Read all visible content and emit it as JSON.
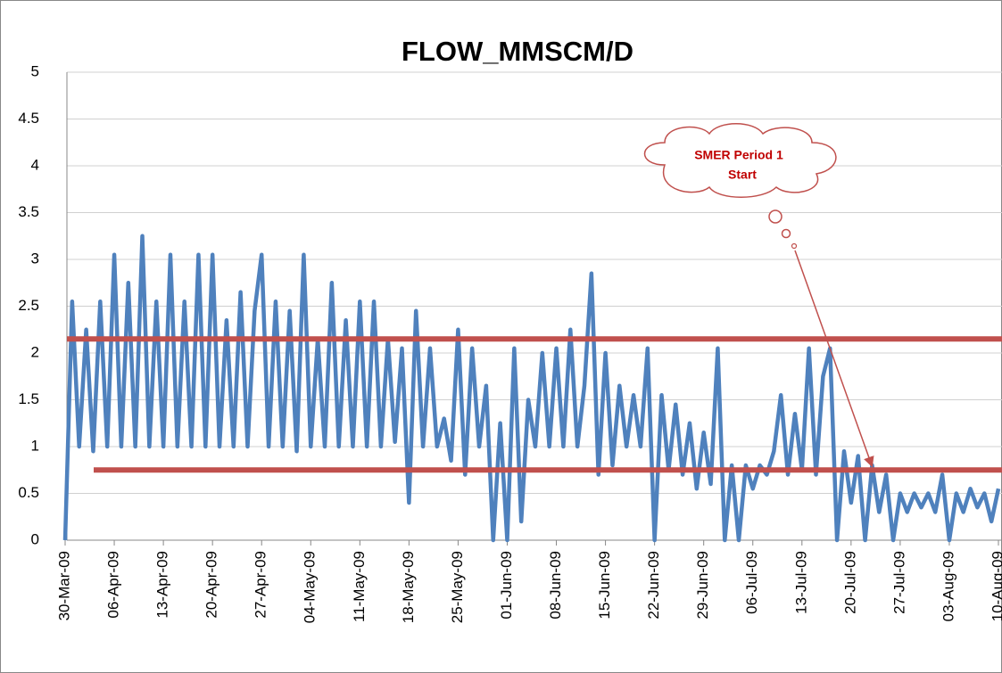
{
  "chart_data": {
    "type": "line",
    "title": "FLOW_MMSCM/D",
    "x": [
      "30-Mar-09",
      "31-Mar-09",
      "01-Apr-09",
      "02-Apr-09",
      "03-Apr-09",
      "04-Apr-09",
      "05-Apr-09",
      "06-Apr-09",
      "07-Apr-09",
      "08-Apr-09",
      "09-Apr-09",
      "10-Apr-09",
      "11-Apr-09",
      "12-Apr-09",
      "13-Apr-09",
      "14-Apr-09",
      "15-Apr-09",
      "16-Apr-09",
      "17-Apr-09",
      "18-Apr-09",
      "19-Apr-09",
      "20-Apr-09",
      "21-Apr-09",
      "22-Apr-09",
      "23-Apr-09",
      "24-Apr-09",
      "25-Apr-09",
      "26-Apr-09",
      "27-Apr-09",
      "28-Apr-09",
      "29-Apr-09",
      "30-Apr-09",
      "01-May-09",
      "02-May-09",
      "03-May-09",
      "04-May-09",
      "05-May-09",
      "06-May-09",
      "07-May-09",
      "08-May-09",
      "09-May-09",
      "10-May-09",
      "11-May-09",
      "12-May-09",
      "13-May-09",
      "14-May-09",
      "15-May-09",
      "16-May-09",
      "17-May-09",
      "18-May-09",
      "19-May-09",
      "20-May-09",
      "21-May-09",
      "22-May-09",
      "23-May-09",
      "24-May-09",
      "25-May-09",
      "26-May-09",
      "27-May-09",
      "28-May-09",
      "29-May-09",
      "30-May-09",
      "31-May-09",
      "01-Jun-09",
      "02-Jun-09",
      "03-Jun-09",
      "04-Jun-09",
      "05-Jun-09",
      "06-Jun-09",
      "07-Jun-09",
      "08-Jun-09",
      "09-Jun-09",
      "10-Jun-09",
      "11-Jun-09",
      "12-Jun-09",
      "13-Jun-09",
      "14-Jun-09",
      "15-Jun-09",
      "16-Jun-09",
      "17-Jun-09",
      "18-Jun-09",
      "19-Jun-09",
      "20-Jun-09",
      "21-Jun-09",
      "22-Jun-09",
      "23-Jun-09",
      "24-Jun-09",
      "25-Jun-09",
      "26-Jun-09",
      "27-Jun-09",
      "28-Jun-09",
      "29-Jun-09",
      "30-Jun-09",
      "01-Jul-09",
      "02-Jul-09",
      "03-Jul-09",
      "04-Jul-09",
      "05-Jul-09",
      "06-Jul-09",
      "07-Jul-09",
      "08-Jul-09",
      "09-Jul-09",
      "10-Jul-09",
      "11-Jul-09",
      "12-Jul-09",
      "13-Jul-09",
      "14-Jul-09",
      "15-Jul-09",
      "16-Jul-09",
      "17-Jul-09",
      "18-Jul-09",
      "19-Jul-09",
      "20-Jul-09",
      "21-Jul-09",
      "22-Jul-09",
      "23-Jul-09",
      "24-Jul-09",
      "25-Jul-09",
      "26-Jul-09",
      "27-Jul-09",
      "28-Jul-09",
      "29-Jul-09",
      "30-Jul-09",
      "31-Jul-09",
      "01-Aug-09",
      "02-Aug-09",
      "03-Aug-09",
      "04-Aug-09",
      "05-Aug-09",
      "06-Aug-09",
      "07-Aug-09",
      "08-Aug-09",
      "09-Aug-09",
      "10-Aug-09"
    ],
    "series": [
      {
        "color": "#4f81bd",
        "values": [
          0,
          2.55,
          1.0,
          2.25,
          0.95,
          2.55,
          1.0,
          3.05,
          1.0,
          2.75,
          1.0,
          3.25,
          1.0,
          2.55,
          1.0,
          3.05,
          1.0,
          2.55,
          1.0,
          3.05,
          1.0,
          3.05,
          1.0,
          2.35,
          1.0,
          2.65,
          1.0,
          2.45,
          3.05,
          1.0,
          2.55,
          1.0,
          2.45,
          0.95,
          3.05,
          1.0,
          2.15,
          1.0,
          2.75,
          1.0,
          2.35,
          1.0,
          2.55,
          1.0,
          2.55,
          1.0,
          2.15,
          1.05,
          2.05,
          0.4,
          2.45,
          1.0,
          2.05,
          1.0,
          1.3,
          0.85,
          2.25,
          0.7,
          2.05,
          1.0,
          1.65,
          0,
          1.25,
          0,
          2.05,
          0.2,
          1.5,
          1.0,
          2.0,
          1.0,
          2.05,
          1.0,
          2.25,
          1.0,
          1.65,
          2.85,
          0.7,
          2.0,
          0.8,
          1.65,
          1.0,
          1.55,
          1.0,
          2.05,
          0,
          1.55,
          0.75,
          1.45,
          0.7,
          1.25,
          0.55,
          1.15,
          0.6,
          2.05,
          0,
          0.8,
          0,
          0.8,
          0.55,
          0.8,
          0.7,
          0.95,
          1.55,
          0.7,
          1.35,
          0.75,
          2.05,
          0.7,
          1.75,
          2.05,
          0,
          0.95,
          0.4,
          0.9,
          0,
          0.8,
          0.3,
          0.7,
          0,
          0.5,
          0.3,
          0.5,
          0.35,
          0.5,
          0.3,
          0.7,
          0,
          0.5,
          0.3,
          0.55,
          0.35,
          0.5,
          0.2,
          0.55
        ]
      }
    ],
    "xlim": [
      "30-Mar-09",
      "10-Aug-09"
    ],
    "xticks": [
      "30-Mar-09",
      "06-Apr-09",
      "13-Apr-09",
      "20-Apr-09",
      "27-Apr-09",
      "04-May-09",
      "11-May-09",
      "18-May-09",
      "25-May-09",
      "01-Jun-09",
      "08-Jun-09",
      "15-Jun-09",
      "22-Jun-09",
      "29-Jun-09",
      "06-Jul-09",
      "13-Jul-09",
      "20-Jul-09",
      "27-Jul-09",
      "03-Aug-09",
      "10-Aug-09"
    ],
    "ylim": [
      0,
      5
    ],
    "yticks": [
      0,
      0.5,
      1,
      1.5,
      2,
      2.5,
      3,
      3.5,
      4,
      4.5,
      5
    ],
    "grid": true,
    "reference_lines": {
      "color": "#c0504d",
      "values": [
        2.15,
        0.75
      ]
    },
    "annotation": {
      "lines": [
        "SMER Period 1",
        "Start"
      ],
      "color": "#c00000",
      "target": [
        "23-Jul-09",
        0.75
      ]
    }
  }
}
